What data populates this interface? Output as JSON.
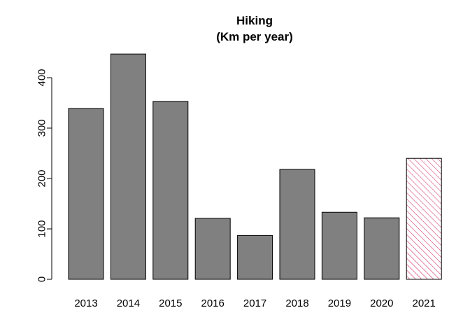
{
  "chart_data": {
    "type": "bar",
    "title_line1": "Hiking",
    "title_line2": "(Km per year)",
    "xlabel": "",
    "ylabel": "",
    "categories": [
      "2013",
      "2014",
      "2015",
      "2016",
      "2017",
      "2018",
      "2019",
      "2020",
      "2021"
    ],
    "values": [
      339,
      447,
      353,
      121,
      87,
      218,
      133,
      122,
      240
    ],
    "highlight_index": 8,
    "ylim": [
      0,
      447
    ],
    "yticks": [
      0,
      100,
      200,
      300,
      400
    ],
    "ytick_labels": [
      "0",
      "100",
      "200",
      "300",
      "400"
    ],
    "grid": false,
    "legend": "none",
    "colors": {
      "bar_fill": "#808080",
      "bar_stroke": "#000000",
      "highlight_hatch": "#cc0044",
      "highlight_stroke": "#000000"
    }
  }
}
